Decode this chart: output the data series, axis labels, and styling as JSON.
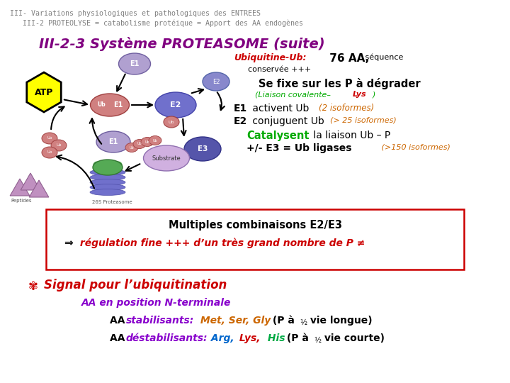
{
  "bg": "#ffffff",
  "header1": "III- Variations physiologiques et pathologiques des ENTREES",
  "header2": "   III-2 PROTEOLYSE = catabolisme protéique = Apport des AA endogènes",
  "header_color": "#808080",
  "title": "III-2-3 Système PROTEASOME (suite)",
  "title_color": "#800080",
  "right_texts": {
    "ubiquitine_red": "Ubiquitine-Ub:",
    "ubiquitine_black": " 76 AA,",
    "ubiquitine_small": " séquence",
    "conservee": "conservée +++",
    "se_fixe": "Se fixe sur les P à dégrader",
    "liaison_green": "(Liaison covalente-",
    "liaison_red": "Lys",
    "liaison_close": ")",
    "e1_bold": "E1",
    "e1_rest": " activent Ub ",
    "e1_italic": "(2 isoformes)",
    "e2_bold": "E2",
    "e2_rest": " conjuguent Ub ",
    "e2_italic": "(> 25 isoformes)",
    "catalysent": "Catalysent",
    "catalysent_rest": " la liaison Ub – P",
    "e3_line": "+/- E3 = Ub ligases",
    "e3_italic": " (>150 isoformes)"
  },
  "box_text1": "Multiples combinaisons E2/E3",
  "box_text2_arrow": "⇒",
  "box_text2_red": " régulation fine +++ d’un très grand nombre de P ≠",
  "signal_sym": "♥",
  "signal_text": " Signal pour l’ubiquitination",
  "aa_position": "AA en position N-terminale",
  "stab_aa": "AA ",
  "stab_label": "stabilisants:",
  "stab_amino": " Met, Ser, Gly",
  "stab_rest": " (P à ½ vie longue)",
  "destab_aa": "AA ",
  "destab_label": " déstabilisants:",
  "destab_arg": " Arg,",
  "destab_lys": " Lys,",
  "destab_his": " His",
  "destab_rest": " (P à ½ vie courte)"
}
